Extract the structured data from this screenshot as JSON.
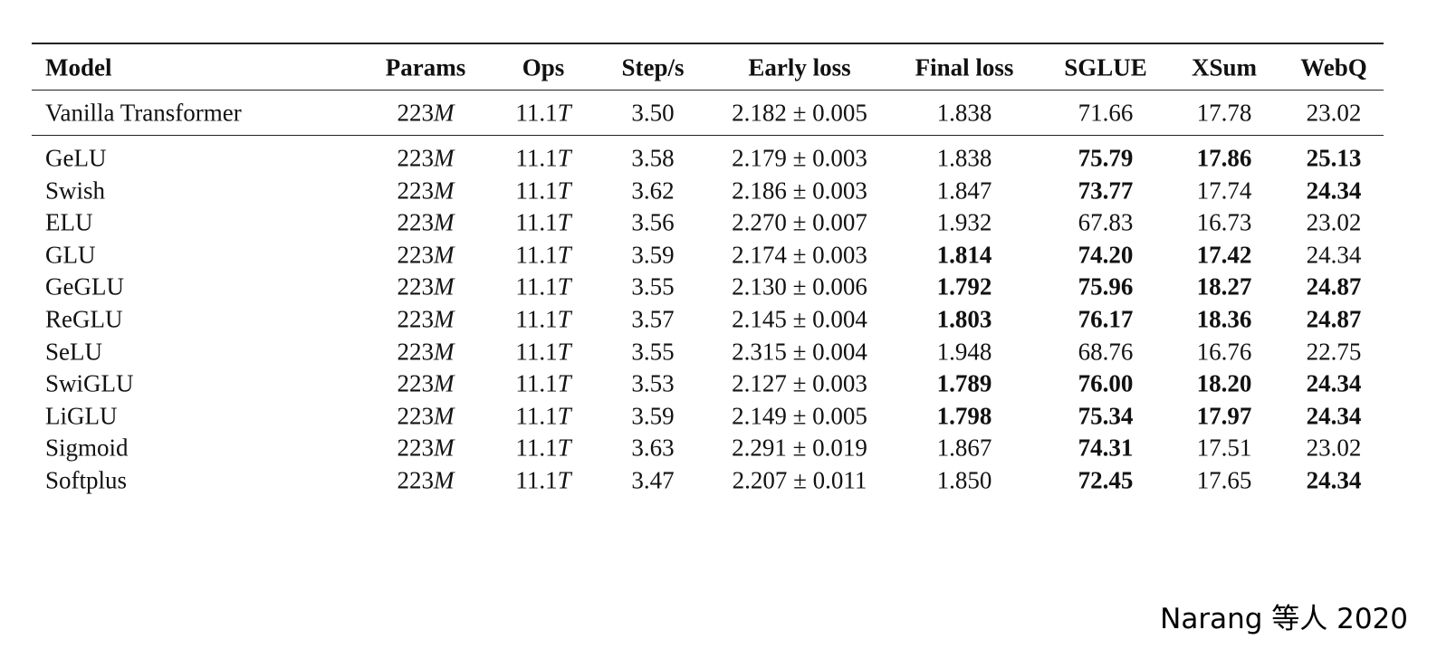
{
  "table": {
    "header": [
      "Model",
      "Params",
      "Ops",
      "Step/s",
      "Early loss",
      "Final loss",
      "SGLUE",
      "XSum",
      "WebQ"
    ],
    "baseline": {
      "cells": [
        "Vanilla Transformer",
        "223M",
        "11.1T",
        "3.50",
        "2.182 ± 0.005",
        "1.838",
        "71.66",
        "17.78",
        "23.02"
      ],
      "bold": []
    },
    "rows": [
      {
        "cells": [
          "GeLU",
          "223M",
          "11.1T",
          "3.58",
          "2.179 ± 0.003",
          "1.838",
          "75.79",
          "17.86",
          "25.13"
        ],
        "bold": [
          6,
          7,
          8
        ]
      },
      {
        "cells": [
          "Swish",
          "223M",
          "11.1T",
          "3.62",
          "2.186 ± 0.003",
          "1.847",
          "73.77",
          "17.74",
          "24.34"
        ],
        "bold": [
          6,
          8
        ]
      },
      {
        "cells": [
          "ELU",
          "223M",
          "11.1T",
          "3.56",
          "2.270 ± 0.007",
          "1.932",
          "67.83",
          "16.73",
          "23.02"
        ],
        "bold": []
      },
      {
        "cells": [
          "GLU",
          "223M",
          "11.1T",
          "3.59",
          "2.174 ± 0.003",
          "1.814",
          "74.20",
          "17.42",
          "24.34"
        ],
        "bold": [
          5,
          6,
          7
        ]
      },
      {
        "cells": [
          "GeGLU",
          "223M",
          "11.1T",
          "3.55",
          "2.130 ± 0.006",
          "1.792",
          "75.96",
          "18.27",
          "24.87"
        ],
        "bold": [
          5,
          6,
          7,
          8
        ]
      },
      {
        "cells": [
          "ReGLU",
          "223M",
          "11.1T",
          "3.57",
          "2.145 ± 0.004",
          "1.803",
          "76.17",
          "18.36",
          "24.87"
        ],
        "bold": [
          5,
          6,
          7,
          8
        ]
      },
      {
        "cells": [
          "SeLU",
          "223M",
          "11.1T",
          "3.55",
          "2.315 ± 0.004",
          "1.948",
          "68.76",
          "16.76",
          "22.75"
        ],
        "bold": []
      },
      {
        "cells": [
          "SwiGLU",
          "223M",
          "11.1T",
          "3.53",
          "2.127 ± 0.003",
          "1.789",
          "76.00",
          "18.20",
          "24.34"
        ],
        "bold": [
          5,
          6,
          7,
          8
        ]
      },
      {
        "cells": [
          "LiGLU",
          "223M",
          "11.1T",
          "3.59",
          "2.149 ± 0.005",
          "1.798",
          "75.34",
          "17.97",
          "24.34"
        ],
        "bold": [
          5,
          6,
          7,
          8
        ]
      },
      {
        "cells": [
          "Sigmoid",
          "223M",
          "11.1T",
          "3.63",
          "2.291 ± 0.019",
          "1.867",
          "74.31",
          "17.51",
          "23.02"
        ],
        "bold": [
          6
        ]
      },
      {
        "cells": [
          "Softplus",
          "223M",
          "11.1T",
          "3.47",
          "2.207 ± 0.011",
          "1.850",
          "72.45",
          "17.65",
          "24.34"
        ],
        "bold": [
          6,
          8
        ]
      }
    ]
  },
  "caption": "Narang 等人 2020"
}
